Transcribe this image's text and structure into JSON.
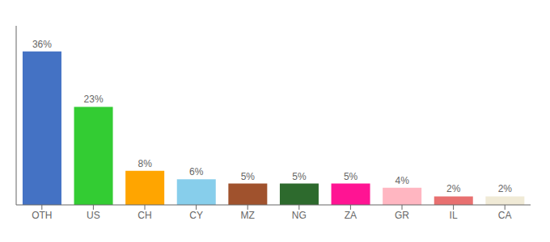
{
  "chart_data": {
    "type": "bar",
    "categories": [
      "OTH",
      "US",
      "CH",
      "CY",
      "MZ",
      "NG",
      "ZA",
      "GR",
      "IL",
      "CA"
    ],
    "values": [
      36,
      23,
      8,
      6,
      5,
      5,
      5,
      4,
      2,
      2
    ],
    "value_labels": [
      "36%",
      "23%",
      "8%",
      "6%",
      "5%",
      "5%",
      "5%",
      "4%",
      "2%",
      "2%"
    ],
    "data_labels": true,
    "colors": [
      "#4472C4",
      "#33CC33",
      "#FFA500",
      "#87CEEB",
      "#A0522D",
      "#2D6A2D",
      "#FF1493",
      "#FFB6C1",
      "#E87070",
      "#F0EAD6"
    ],
    "ylim": [
      0,
      42
    ],
    "grid": false,
    "tick_labels": "x"
  }
}
